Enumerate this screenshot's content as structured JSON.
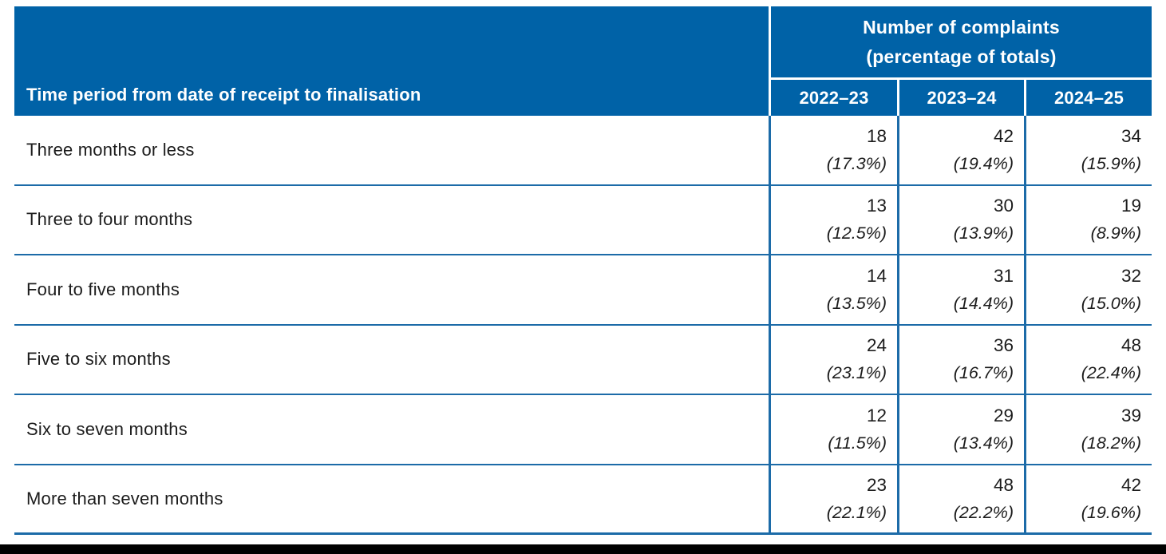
{
  "colors": {
    "header_blue": "#0062a7",
    "grid_line_blue": "#1c6ba8",
    "header_text": "#ffffff",
    "body_text": "#1c1c1c",
    "bottom_bar": "#000000"
  },
  "table": {
    "header": {
      "row_label": "Time period from date of receipt to finalisation",
      "group_line1": "Number of complaints",
      "group_line2": "(percentage of totals)",
      "years": [
        "2022–23",
        "2023–24",
        "2024–25"
      ]
    },
    "rows": [
      {
        "label": "Three months or less",
        "cells": [
          {
            "n": "18",
            "pct": "(17.3%)"
          },
          {
            "n": "42",
            "pct": "(19.4%)"
          },
          {
            "n": "34",
            "pct": "(15.9%)"
          }
        ]
      },
      {
        "label": "Three to four months",
        "cells": [
          {
            "n": "13",
            "pct": "(12.5%)"
          },
          {
            "n": "30",
            "pct": "(13.9%)"
          },
          {
            "n": "19",
            "pct": "(8.9%)"
          }
        ]
      },
      {
        "label": "Four to five months",
        "cells": [
          {
            "n": "14",
            "pct": "(13.5%)"
          },
          {
            "n": "31",
            "pct": "(14.4%)"
          },
          {
            "n": "32",
            "pct": "(15.0%)"
          }
        ]
      },
      {
        "label": "Five to six months",
        "cells": [
          {
            "n": "24",
            "pct": "(23.1%)"
          },
          {
            "n": "36",
            "pct": "(16.7%)"
          },
          {
            "n": "48",
            "pct": "(22.4%)"
          }
        ]
      },
      {
        "label": "Six to seven months",
        "cells": [
          {
            "n": "12",
            "pct": "(11.5%)"
          },
          {
            "n": "29",
            "pct": "(13.4%)"
          },
          {
            "n": "39",
            "pct": "(18.2%)"
          }
        ]
      },
      {
        "label": "More than seven months",
        "cells": [
          {
            "n": "23",
            "pct": "(22.1%)"
          },
          {
            "n": "48",
            "pct": "(22.2%)"
          },
          {
            "n": "42",
            "pct": "(19.6%)"
          }
        ]
      }
    ]
  }
}
